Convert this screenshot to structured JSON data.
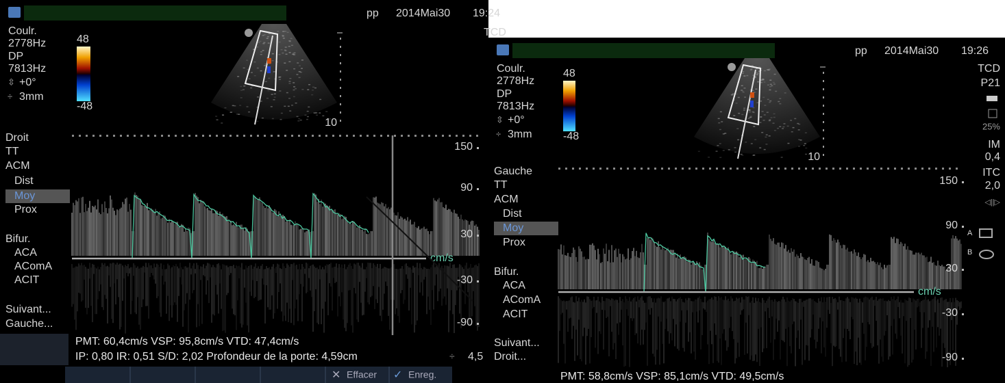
{
  "left": {
    "status": {
      "user": "pp",
      "date": "2014Mai30",
      "time": "19:24",
      "mode": "TCD"
    },
    "params": [
      "Coulr.",
      "2778Hz",
      "DP",
      "7813Hz",
      "+0°",
      "3mm"
    ],
    "color_scale": {
      "max": 48,
      "min": -48
    },
    "depth": 10,
    "menu": [
      "Droit",
      "TT",
      "ACM",
      "Dist",
      "Moy",
      "Prox",
      "Bifur.",
      "ACA",
      "AComA",
      "ACIT",
      "Suivant...",
      "Gauche..."
    ],
    "velocity_scale": {
      "ticks": [
        150,
        90,
        30,
        -30,
        -90
      ],
      "unit": "cm/s"
    },
    "measurements": [
      "PMT: 60,4cm/s VSP: 95,8cm/s VTD: 47,4cm/s",
      "IP: 0,80 IR: 0,51 S/D: 2,02 Profondeur de la porte: 4,59cm"
    ],
    "cropped_value": "4,5",
    "buttons": [
      "Effacer",
      "Enreg."
    ]
  },
  "right": {
    "status": {
      "user": "pp",
      "date": "2014Mai30",
      "time": "19:26",
      "mode": "TCD",
      "probe": "P21"
    },
    "indicators": {
      "storage": "25%",
      "im_label": "IM",
      "im_value": "0,4",
      "itc_label": "ITC",
      "itc_value": "2,0"
    },
    "params": [
      "Coulr.",
      "2778Hz",
      "DP",
      "7813Hz",
      "+0°",
      "3mm"
    ],
    "color_scale": {
      "max": 48,
      "min": -48
    },
    "depth": 10,
    "menu": [
      "Gauche",
      "TT",
      "ACM",
      "Dist",
      "Moy",
      "Prox",
      "Bifur.",
      "ACA",
      "AComA",
      "ACIT",
      "Suivant...",
      "Droit..."
    ],
    "velocity_scale": {
      "ticks": [
        150,
        90,
        30,
        -30,
        -90
      ],
      "unit": "cm/s"
    },
    "markers": [
      "A",
      "B"
    ],
    "measurements": [
      "PMT: 58,8cm/s VSP: 85,1cm/s VTD: 49,5cm/s"
    ]
  }
}
